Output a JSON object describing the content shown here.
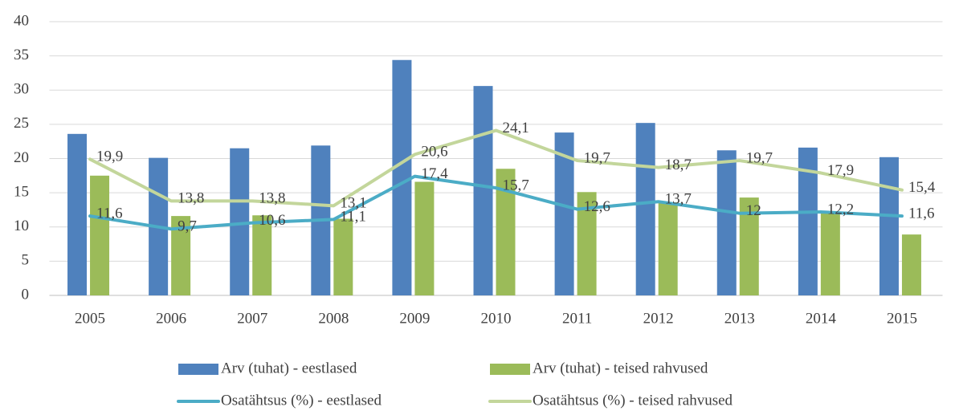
{
  "chart_data": {
    "type": "bar",
    "categories": [
      "2005",
      "2006",
      "2007",
      "2008",
      "2009",
      "2010",
      "2011",
      "2012",
      "2013",
      "2014",
      "2015"
    ],
    "series": [
      {
        "name": "Arv (tuhat) - eestlased",
        "color": "#4f81bd",
        "type": "bar",
        "values": [
          23.6,
          20.1,
          21.5,
          21.9,
          34.4,
          30.6,
          23.8,
          25.2,
          21.2,
          21.6,
          20.2
        ]
      },
      {
        "name": "Arv (tuhat) - teised rahvused",
        "color": "#9bbb59",
        "type": "bar",
        "values": [
          17.5,
          11.6,
          11.7,
          11.2,
          16.6,
          18.5,
          15.1,
          13.6,
          14.3,
          12.0,
          8.9
        ]
      },
      {
        "name": "Osatähtsus (%) - eestlased",
        "color": "#4bacc6",
        "type": "line",
        "values": [
          11.6,
          9.7,
          10.6,
          11.1,
          17.4,
          15.7,
          12.6,
          13.7,
          12,
          12.2,
          11.6
        ],
        "value_labels": [
          "11,6",
          "9,7",
          "10,6",
          "11,1",
          "17,4",
          "15,7",
          "12,6",
          "13,7",
          "12",
          "12,2",
          "11,6"
        ]
      },
      {
        "name": "Osatähtsus (%) - teised rahvused",
        "color": "#c3d69b",
        "type": "line",
        "values": [
          19.9,
          13.8,
          13.8,
          13.1,
          20.6,
          24.1,
          19.7,
          18.7,
          19.7,
          17.9,
          15.4
        ],
        "value_labels": [
          "19,9",
          "13,8",
          "13,8",
          "13,1",
          "20,6",
          "24,1",
          "19,7",
          "18,7",
          "19,7",
          "17,9",
          "15,4"
        ]
      }
    ],
    "ylim": [
      0,
      40
    ],
    "yticks": [
      0,
      5,
      10,
      15,
      20,
      25,
      30,
      35,
      40
    ],
    "grid": true,
    "legend": "bottom"
  }
}
